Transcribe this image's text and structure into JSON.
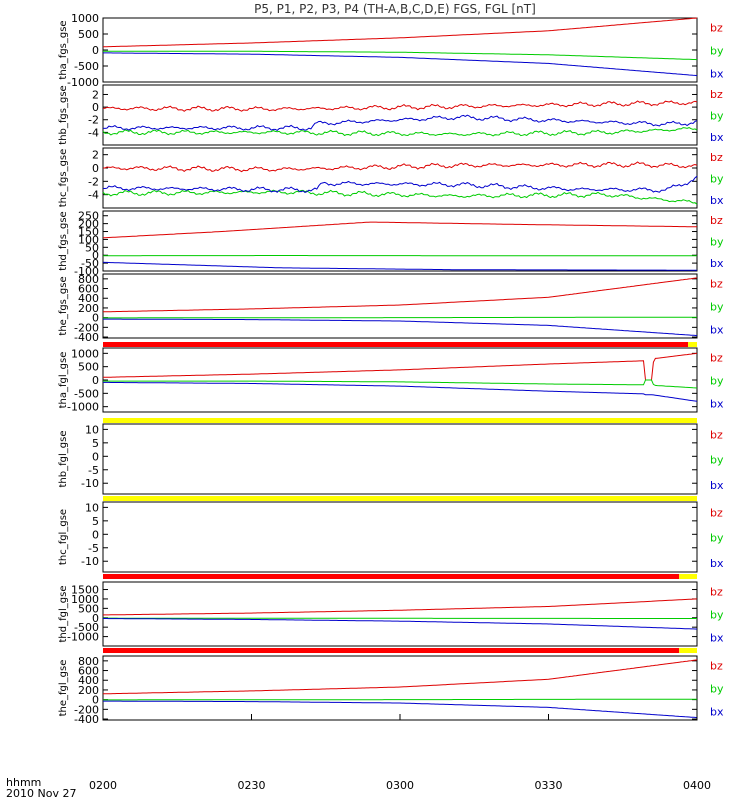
{
  "title": "P5, P1, P2, P3, P4 (TH-A,B,C,D,E) FGS, FGL [nT]",
  "footer": {
    "label_line1": "hhmm",
    "label_line2": "2010 Nov 27"
  },
  "colors": {
    "bz": "#dd0000",
    "by": "#00cc00",
    "bx": "#0000cc",
    "bar_red": "#ff0000",
    "bar_yellow": "#ffff00"
  },
  "chart_data": {
    "type": "line",
    "x_axis": {
      "label": "hhmm",
      "date": "2010 Nov 27",
      "range": [
        "0200",
        "0400"
      ],
      "ticks": [
        "0200",
        "0230",
        "0300",
        "0330",
        "0400"
      ]
    },
    "panels": [
      {
        "ylabel": "tha_fgs_gse",
        "ylim": [
          -1000,
          1000
        ],
        "yticks": [
          "1000",
          "500",
          "0",
          "-500",
          "-1000"
        ],
        "legend": [
          "bz",
          "by",
          "bx"
        ],
        "series": [
          {
            "name": "bz",
            "x": [
              0,
              0.25,
              0.5,
              0.75,
              1.0
            ],
            "y": [
              100,
              220,
              380,
              600,
              1000
            ]
          },
          {
            "name": "by",
            "x": [
              0,
              0.25,
              0.5,
              0.75,
              1.0
            ],
            "y": [
              -40,
              -40,
              -70,
              -150,
              -300
            ]
          },
          {
            "name": "bx",
            "x": [
              0,
              0.25,
              0.5,
              0.75,
              1.0
            ],
            "y": [
              -90,
              -130,
              -230,
              -420,
              -800
            ]
          }
        ]
      },
      {
        "ylabel": "thb_fgs_gse",
        "ylim": [
          -6,
          3.5
        ],
        "yticks": [
          "2",
          "0",
          "-2",
          "-4"
        ],
        "legend": [
          "bz",
          "by",
          "bx"
        ],
        "series": [
          {
            "name": "bz",
            "x": [
              0,
              0.3,
              0.6,
              0.85,
              1.0
            ],
            "y": [
              -0.2,
              -0.3,
              0.1,
              0.5,
              0.7
            ]
          },
          {
            "name": "by",
            "x": [
              0,
              0.3,
              0.6,
              0.85,
              1.0
            ],
            "y": [
              -4.0,
              -4.0,
              -4.3,
              -4.0,
              -3.4
            ]
          },
          {
            "name": "bx",
            "x": [
              0,
              0.35,
              0.36,
              0.6,
              0.75,
              0.95,
              1.0
            ],
            "y": [
              -3.3,
              -3.3,
              -2.6,
              -1.6,
              -2.1,
              -2.7,
              -2.4
            ]
          }
        ]
      },
      {
        "ylabel": "thc_fgs_gse",
        "ylim": [
          -6,
          3
        ],
        "yticks": [
          "2",
          "0",
          "-2",
          "-4"
        ],
        "legend": [
          "bz",
          "by",
          "bx"
        ],
        "series": [
          {
            "name": "bz",
            "x": [
              0,
              0.3,
              0.6,
              0.9,
              1.0
            ],
            "y": [
              0.0,
              -0.2,
              0.4,
              0.5,
              0.3
            ]
          },
          {
            "name": "by",
            "x": [
              0,
              0.3,
              0.6,
              0.85,
              1.0
            ],
            "y": [
              -3.8,
              -3.6,
              -4.2,
              -4.0,
              -5.2
            ]
          },
          {
            "name": "bx",
            "x": [
              0,
              0.36,
              0.37,
              0.6,
              0.8,
              0.95,
              1.0
            ],
            "y": [
              -3.0,
              -3.3,
              -2.3,
              -2.5,
              -3.2,
              -3.3,
              -1.5
            ]
          }
        ]
      },
      {
        "ylabel": "thd_fgs_gse",
        "ylim": [
          -100,
          280
        ],
        "yticks": [
          "250",
          "200",
          "150",
          "100",
          "50",
          "0",
          "-50",
          "-100"
        ],
        "legend": [
          "bz",
          "by",
          "bx"
        ],
        "series": [
          {
            "name": "bz",
            "x": [
              0,
              0.2,
              0.45,
              0.7,
              1.0
            ],
            "y": [
              110,
              150,
              210,
              195,
              180
            ]
          },
          {
            "name": "by",
            "x": [
              0,
              0.3,
              0.6,
              1.0
            ],
            "y": [
              -3,
              -2,
              -3,
              -3
            ]
          },
          {
            "name": "bx",
            "x": [
              0,
              0.3,
              0.6,
              1.0
            ],
            "y": [
              -45,
              -80,
              -92,
              -95
            ]
          }
        ]
      },
      {
        "ylabel": "the_fgs_gse",
        "ylim": [
          -420,
          900
        ],
        "yticks": [
          "800",
          "600",
          "400",
          "200",
          "0",
          "-200",
          "-400"
        ],
        "legend": [
          "bz",
          "by",
          "bx"
        ],
        "series": [
          {
            "name": "bz",
            "x": [
              0,
              0.25,
              0.5,
              0.75,
              1.0
            ],
            "y": [
              120,
              180,
              260,
              420,
              820
            ]
          },
          {
            "name": "by",
            "x": [
              0,
              0.5,
              1.0
            ],
            "y": [
              -5,
              0,
              10
            ]
          },
          {
            "name": "bx",
            "x": [
              0,
              0.25,
              0.5,
              0.75,
              1.0
            ],
            "y": [
              -30,
              -40,
              -70,
              -160,
              -370
            ]
          }
        ]
      },
      {
        "ylabel": "tha_fgl_gse",
        "ylim": [
          -1200,
          1200
        ],
        "yticks": [
          "1000",
          "500",
          "0",
          "-500",
          "-1000"
        ],
        "legend": [
          "bz",
          "by",
          "bx"
        ],
        "series": [
          {
            "name": "bz",
            "x": [
              0,
              0.25,
              0.5,
              0.75,
              0.91,
              0.912,
              0.925,
              0.927,
              1.0
            ],
            "y": [
              100,
              220,
              380,
              600,
              720,
              0,
              0,
              800,
              1000
            ]
          },
          {
            "name": "by",
            "x": [
              0,
              0.25,
              0.5,
              0.75,
              0.91,
              0.912,
              0.925,
              0.927,
              1.0
            ],
            "y": [
              -40,
              -40,
              -70,
              -150,
              -180,
              0,
              0,
              -200,
              -300
            ]
          },
          {
            "name": "bx",
            "x": [
              0,
              0.25,
              0.5,
              0.75,
              0.91,
              0.912,
              0.925,
              0.927,
              1.0
            ],
            "y": [
              -90,
              -130,
              -230,
              -420,
              -520,
              -550,
              -550,
              -560,
              -800
            ]
          }
        ]
      },
      {
        "ylabel": "thb_fgl_gse",
        "ylim": [
          -14,
          12
        ],
        "yticks": [
          "10",
          "5",
          "0",
          "-5",
          "-10"
        ],
        "legend": [
          "bz",
          "by",
          "bx"
        ],
        "series": []
      },
      {
        "ylabel": "thc_fgl_gse",
        "ylim": [
          -14,
          12
        ],
        "yticks": [
          "10",
          "5",
          "0",
          "-5",
          "-10"
        ],
        "legend": [
          "bz",
          "by",
          "bx"
        ],
        "series": []
      },
      {
        "ylabel": "thd_fgl_gse",
        "ylim": [
          -1500,
          1900
        ],
        "yticks": [
          "1500",
          "1000",
          "500",
          "0",
          "-500",
          "-1000"
        ],
        "legend": [
          "bz",
          "by",
          "bx"
        ],
        "series": [
          {
            "name": "bz",
            "x": [
              0,
              0.25,
              0.5,
              0.75,
              1.0
            ],
            "y": [
              150,
              250,
              400,
              600,
              1000
            ]
          },
          {
            "name": "by",
            "x": [
              0,
              0.5,
              1.0
            ],
            "y": [
              -20,
              -30,
              -40
            ]
          },
          {
            "name": "bx",
            "x": [
              0,
              0.25,
              0.5,
              0.75,
              1.0
            ],
            "y": [
              -40,
              -90,
              -180,
              -330,
              -600
            ]
          }
        ]
      },
      {
        "ylabel": "the_fgl_gse",
        "ylim": [
          -420,
          900
        ],
        "yticks": [
          "800",
          "600",
          "400",
          "200",
          "0",
          "-200",
          "-400"
        ],
        "legend": [
          "bz",
          "by",
          "bx"
        ],
        "series": [
          {
            "name": "bz",
            "x": [
              0,
              0.25,
              0.5,
              0.75,
              1.0
            ],
            "y": [
              120,
              180,
              260,
              420,
              820
            ]
          },
          {
            "name": "by",
            "x": [
              0,
              0.5,
              1.0
            ],
            "y": [
              -5,
              0,
              10
            ]
          },
          {
            "name": "bx",
            "x": [
              0,
              0.25,
              0.5,
              0.75,
              1.0
            ],
            "y": [
              -30,
              -40,
              -70,
              -160,
              -370
            ]
          }
        ]
      }
    ],
    "status_bars": [
      {
        "after_panel": 4,
        "segments": [
          {
            "color": "red",
            "from": 0.0,
            "to": 0.985
          },
          {
            "color": "yellow",
            "from": 0.985,
            "to": 1.0
          }
        ]
      },
      {
        "after_panel": 5,
        "segments": [
          {
            "color": "yellow",
            "from": 0.0,
            "to": 1.0
          }
        ]
      },
      {
        "after_panel": 6,
        "segments": [
          {
            "color": "yellow",
            "from": 0.0,
            "to": 1.0
          }
        ]
      },
      {
        "after_panel": 7,
        "segments": [
          {
            "color": "red",
            "from": 0.0,
            "to": 0.97
          },
          {
            "color": "yellow",
            "from": 0.97,
            "to": 1.0
          }
        ]
      },
      {
        "after_panel": 8,
        "segments": [
          {
            "color": "red",
            "from": 0.0,
            "to": 0.97
          },
          {
            "color": "yellow",
            "from": 0.97,
            "to": 1.0
          }
        ]
      }
    ]
  }
}
